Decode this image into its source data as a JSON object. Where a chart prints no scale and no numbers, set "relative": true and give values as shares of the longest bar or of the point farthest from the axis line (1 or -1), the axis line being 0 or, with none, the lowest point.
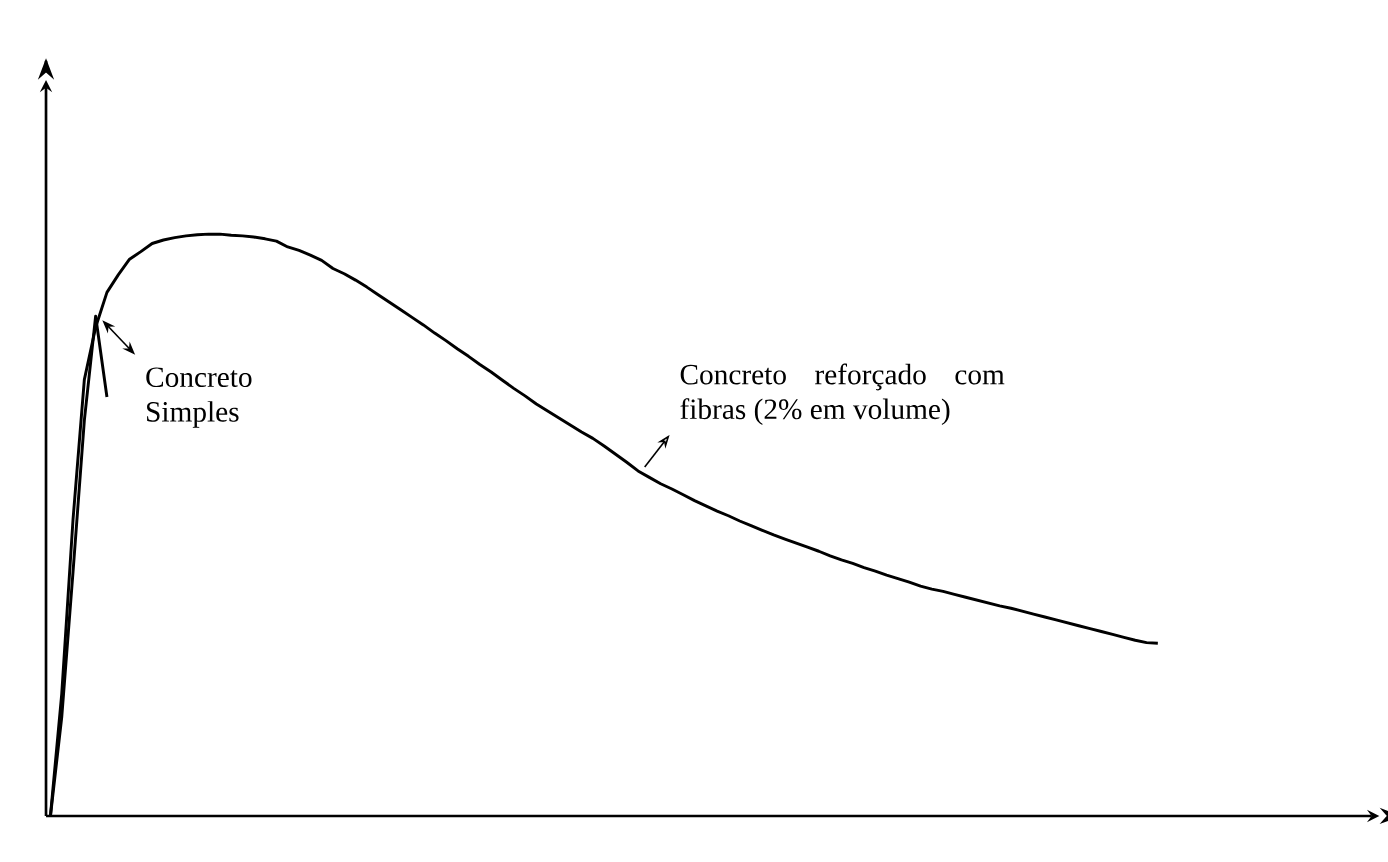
{
  "chart_data": {
    "type": "line",
    "relative": true,
    "tick_labels": false,
    "marker": "none",
    "line_style": "solid",
    "annotations": [
      "Concreto Simples",
      "Concreto reforçado com fibras (2% em volume)"
    ],
    "categories": [
      null,
      null,
      null,
      null,
      null,
      null,
      null,
      null,
      null,
      null,
      null,
      null,
      null,
      null,
      null,
      null,
      null,
      null,
      null,
      null,
      null,
      null,
      null,
      null,
      null,
      null,
      null,
      null,
      null,
      null,
      null,
      null,
      null,
      null,
      null,
      null,
      null,
      null,
      null,
      null,
      null,
      null,
      null,
      null,
      null,
      null,
      null,
      null,
      null,
      null,
      null,
      null,
      null,
      null,
      null,
      null,
      null,
      null,
      null,
      null,
      null,
      null,
      null,
      null,
      null,
      null,
      null,
      null,
      null,
      null,
      null,
      null,
      null,
      null,
      null,
      null,
      null,
      null,
      null,
      null,
      null,
      null,
      null,
      null,
      null,
      null,
      null,
      null,
      null,
      null,
      null,
      null,
      null,
      null,
      null,
      null,
      null,
      null,
      null
    ],
    "series": [
      {
        "color": "#000000",
        "values": [
          0,
          0.21,
          0.51,
          0.75,
          0.84,
          0.9,
          0.93,
          0.957,
          0.97,
          0.984,
          0.99,
          0.994,
          0.997,
          0.999,
          1.0,
          1.0,
          0.998,
          0.997,
          0.995,
          0.992,
          0.988,
          0.978,
          0.972,
          0.964,
          0.955,
          0.941,
          0.932,
          0.921,
          0.909,
          0.896,
          0.883,
          0.87,
          0.857,
          0.844,
          0.83,
          0.817,
          0.803,
          0.79,
          0.776,
          0.763,
          0.749,
          0.735,
          0.722,
          0.708,
          0.696,
          0.684,
          0.672,
          0.66,
          0.649,
          0.636,
          0.622,
          0.608,
          0.593,
          0.582,
          0.571,
          0.562,
          0.552,
          0.542,
          0.533,
          0.524,
          0.516,
          0.507,
          0.499,
          0.491,
          0.483,
          0.476,
          0.469,
          0.462,
          0.455,
          0.447,
          0.44,
          0.434,
          0.427,
          0.421,
          0.414,
          0.408,
          0.402,
          0.395,
          0.39,
          0.386,
          0.381,
          0.376,
          0.371,
          0.366,
          0.361,
          0.357,
          0.352,
          0.347,
          0.342,
          0.337,
          0.332,
          0.327,
          0.322,
          0.317,
          0.312,
          0.307,
          0.302,
          0.298,
          0.297
        ]
      },
      {
        "color": "#000000",
        "values": [
          0,
          0.17,
          0.42,
          0.68,
          0.859,
          0.72,
          null,
          null,
          null,
          null,
          null,
          null,
          null,
          null,
          null,
          null,
          null,
          null,
          null,
          null,
          null,
          null,
          null,
          null,
          null,
          null,
          null,
          null,
          null,
          null,
          null,
          null,
          null,
          null,
          null,
          null,
          null,
          null,
          null,
          null,
          null,
          null,
          null,
          null,
          null,
          null,
          null,
          null,
          null,
          null,
          null,
          null,
          null,
          null,
          null,
          null,
          null,
          null,
          null,
          null,
          null,
          null,
          null,
          null,
          null,
          null,
          null,
          null,
          null,
          null,
          null,
          null,
          null,
          null,
          null,
          null,
          null,
          null,
          null,
          null,
          null,
          null,
          null,
          null,
          null,
          null,
          null,
          null,
          null,
          null,
          null,
          null,
          null,
          null,
          null,
          null,
          null,
          null,
          null
        ]
      }
    ]
  }
}
